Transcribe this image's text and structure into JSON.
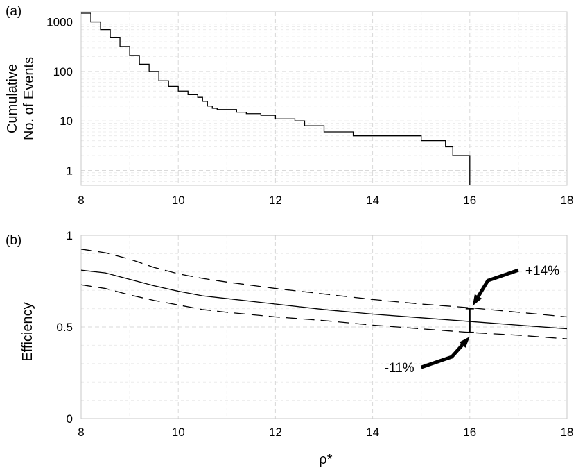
{
  "chart_data": [
    {
      "panel_label": "(a)",
      "type": "line",
      "ylabel_lines": [
        "Cumulative",
        "No. of Events"
      ],
      "xlabel": "",
      "yscale": "log",
      "xlim": [
        8,
        18
      ],
      "ylim": [
        0.5,
        1600
      ],
      "xticks": [
        "8",
        "10",
        "12",
        "14",
        "16",
        "18"
      ],
      "yticks": [
        {
          "value": 1,
          "label": "1"
        },
        {
          "value": 10,
          "label": "10"
        },
        {
          "value": 100,
          "label": "100"
        },
        {
          "value": 1000,
          "label": "1000"
        }
      ],
      "grid": true,
      "series": [
        {
          "style": "step",
          "x": [
            8.0,
            8.2,
            8.4,
            8.6,
            8.8,
            9.0,
            9.2,
            9.4,
            9.6,
            9.8,
            10.0,
            10.2,
            10.4,
            10.5,
            10.6,
            10.7,
            10.8,
            11.2,
            11.4,
            11.7,
            12.0,
            12.4,
            12.6,
            13.0,
            13.6,
            15.0,
            15.5,
            15.65,
            16.0
          ],
          "y": [
            1500,
            1000,
            700,
            480,
            320,
            210,
            140,
            100,
            65,
            50,
            40,
            34,
            30,
            25,
            20,
            18,
            17,
            15,
            14,
            13,
            11,
            10,
            8,
            6,
            5,
            4,
            3,
            2,
            1
          ]
        }
      ]
    },
    {
      "panel_label": "(b)",
      "type": "line",
      "ylabel": "Efficiency",
      "xlabel": "ρ*",
      "xlim": [
        8,
        18
      ],
      "ylim": [
        0,
        1
      ],
      "xticks": [
        "8",
        "10",
        "12",
        "14",
        "16",
        "18"
      ],
      "yticks": [
        {
          "value": 0,
          "label": "0"
        },
        {
          "value": 0.5,
          "label": "0.5"
        },
        {
          "value": 1,
          "label": "1"
        }
      ],
      "grid": true,
      "series": [
        {
          "style": "solid",
          "x": [
            8,
            8.5,
            9,
            9.5,
            10,
            10.5,
            11,
            12,
            13,
            14,
            15,
            16,
            17,
            18
          ],
          "y": [
            0.81,
            0.795,
            0.76,
            0.725,
            0.695,
            0.67,
            0.655,
            0.625,
            0.595,
            0.57,
            0.55,
            0.53,
            0.51,
            0.49
          ]
        },
        {
          "style": "dashed",
          "x": [
            8,
            8.5,
            9,
            9.5,
            10,
            10.5,
            11,
            12,
            13,
            14,
            15,
            16,
            17,
            18
          ],
          "y": [
            0.925,
            0.905,
            0.87,
            0.825,
            0.79,
            0.765,
            0.745,
            0.71,
            0.68,
            0.65,
            0.625,
            0.605,
            0.58,
            0.555
          ]
        },
        {
          "style": "dashed",
          "x": [
            8,
            8.5,
            9,
            9.5,
            10,
            10.5,
            11,
            12,
            13,
            14,
            15,
            16,
            17,
            18
          ],
          "y": [
            0.73,
            0.71,
            0.675,
            0.645,
            0.62,
            0.595,
            0.58,
            0.555,
            0.535,
            0.51,
            0.49,
            0.47,
            0.455,
            0.435
          ]
        }
      ],
      "errorbar": {
        "x": 16,
        "ymin": 0.47,
        "ymax": 0.6
      },
      "annotations": [
        {
          "text": "+14%",
          "target": [
            16,
            0.6
          ],
          "from": [
            17,
            0.81
          ]
        },
        {
          "text": "-11%",
          "target": [
            16,
            0.47
          ],
          "from": [
            15,
            0.28
          ]
        }
      ]
    }
  ]
}
